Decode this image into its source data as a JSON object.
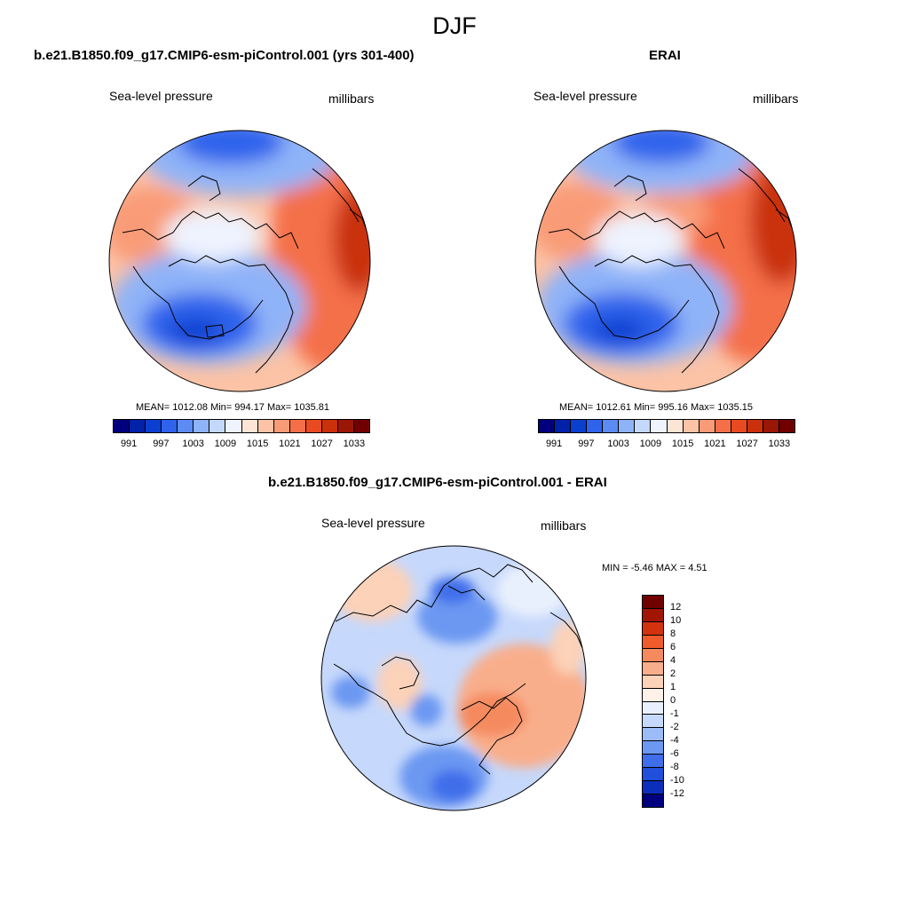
{
  "title": "DJF",
  "panels": {
    "model": {
      "title": "b.e21.B1850.f09_g17.CMIP6-esm-piControl.001 (yrs 301-400)",
      "variable": "Sea-level pressure",
      "units": "millibars",
      "stats": "MEAN= 1012.08  Min= 994.17  Max= 1035.81"
    },
    "obs": {
      "title": "ERAI",
      "variable": "Sea-level pressure",
      "units": "millibars",
      "stats": "MEAN= 1012.61  Min= 995.16  Max= 1035.15"
    },
    "diff": {
      "title": "b.e21.B1850.f09_g17.CMIP6-esm-piControl.001 - ERAI",
      "variable": "Sea-level pressure",
      "units": "millibars",
      "stats": "MIN =  -5.46 MAX =   4.51"
    }
  },
  "colorbar_abs": {
    "colors": [
      "#00007f",
      "#0021a8",
      "#0a3fd0",
      "#2f63ec",
      "#5c8bf3",
      "#8fb3f8",
      "#c4d8fb",
      "#eef3fe",
      "#fde5d6",
      "#fcc3a6",
      "#f99b77",
      "#f46f48",
      "#e84a22",
      "#c9300b",
      "#9a1605",
      "#700000"
    ],
    "labels": [
      "991",
      "997",
      "1003",
      "1009",
      "1015",
      "1021",
      "1027",
      "1033"
    ]
  },
  "colorbar_diff": {
    "colors": [
      "#700000",
      "#a11503",
      "#d2320d",
      "#f05b2c",
      "#f58a5e",
      "#f9ae8b",
      "#fcd2b8",
      "#fef1e8",
      "#e9f0fd",
      "#c6d8fb",
      "#9cbcf7",
      "#6c98f2",
      "#3f6eea",
      "#1f4fdb",
      "#0b2fba",
      "#00007f"
    ],
    "labels": [
      "12",
      "10",
      "8",
      "6",
      "4",
      "2",
      "1",
      "0",
      "-1",
      "-2",
      "-4",
      "-6",
      "-8",
      "-10",
      "-12"
    ]
  }
}
